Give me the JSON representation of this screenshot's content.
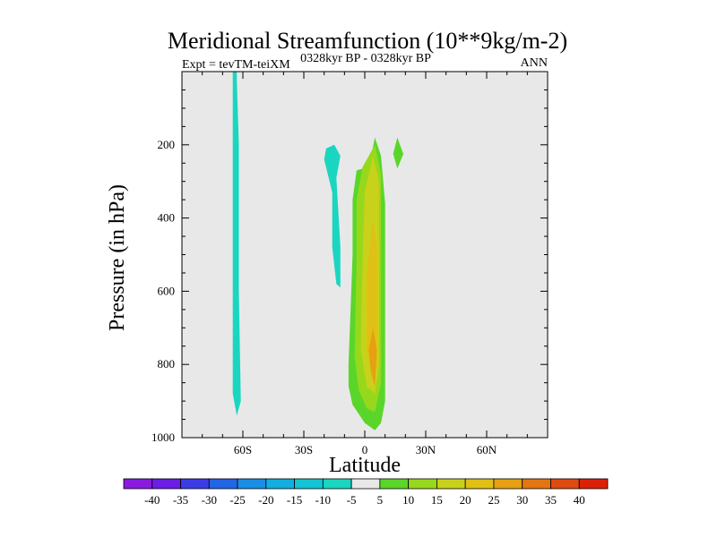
{
  "chart_data": {
    "type": "contour",
    "title": "Meridional Streamfunction (10**9kg/m-2)",
    "subtitle_left": "Expt = tevTM-teiXM",
    "subtitle_center": "0328kyr BP - 0328kyr BP",
    "subtitle_right": "ANN",
    "xlabel": "Latitude",
    "ylabel": "Pressure (in hPa)",
    "xlim": [
      -90,
      90
    ],
    "ylim": [
      1000,
      0
    ],
    "x_ticks": [
      {
        "value": -60,
        "label": "60S"
      },
      {
        "value": -30,
        "label": "30S"
      },
      {
        "value": 0,
        "label": "0"
      },
      {
        "value": 30,
        "label": "30N"
      },
      {
        "value": 60,
        "label": "60N"
      }
    ],
    "y_ticks": [
      {
        "value": 200,
        "label": "200"
      },
      {
        "value": 400,
        "label": "400"
      },
      {
        "value": 600,
        "label": "600"
      },
      {
        "value": 800,
        "label": "800"
      },
      {
        "value": 1000,
        "label": "1000"
      }
    ],
    "background_color": "#e8e8e8",
    "colorbar": {
      "labels": [
        "-40",
        "-35",
        "-30",
        "-25",
        "-20",
        "-15",
        "-10",
        "-5",
        "5",
        "10",
        "15",
        "20",
        "25",
        "30",
        "35",
        "40"
      ],
      "colors": [
        "#8b1ae0",
        "#6a1ee6",
        "#3c3ce6",
        "#2266e6",
        "#1a8ee6",
        "#12aee0",
        "#14c4d4",
        "#1ad6c0",
        "#e8e8e8",
        "#5ad62a",
        "#98d81c",
        "#c8d21a",
        "#e0c014",
        "#e6a012",
        "#e47612",
        "#e04a10",
        "#dc2008"
      ]
    },
    "regions": [
      {
        "level": "-10 to -5",
        "color": "#1ad6c0",
        "points": [
          [
            -65,
            0
          ],
          [
            -63,
            0
          ],
          [
            -63,
            20
          ],
          [
            -62,
            200
          ],
          [
            -62,
            600
          ],
          [
            -61,
            900
          ],
          [
            -63,
            940
          ],
          [
            -65,
            880
          ],
          [
            -65,
            200
          ]
        ]
      },
      {
        "level": "-10 to -5",
        "color": "#1ad6c0",
        "points": [
          [
            -19,
            210
          ],
          [
            -15,
            200
          ],
          [
            -12,
            230
          ],
          [
            -14,
            290
          ],
          [
            -12,
            480
          ],
          [
            -12,
            590
          ],
          [
            -14,
            580
          ],
          [
            -16,
            480
          ],
          [
            -16,
            330
          ],
          [
            -20,
            240
          ]
        ]
      },
      {
        "level": "5 to 10",
        "color": "#5ad62a",
        "points": [
          [
            2,
            260
          ],
          [
            5,
            180
          ],
          [
            8,
            230
          ],
          [
            10,
            360
          ],
          [
            10,
            900
          ],
          [
            8,
            960
          ],
          [
            5,
            980
          ],
          [
            0,
            960
          ],
          [
            -6,
            910
          ],
          [
            -8,
            860
          ],
          [
            -8,
            800
          ],
          [
            -6,
            500
          ],
          [
            -6,
            350
          ],
          [
            -4,
            270
          ]
        ]
      },
      {
        "level": "5 to 10",
        "color": "#5ad62a",
        "points": [
          [
            16,
            180
          ],
          [
            19,
            225
          ],
          [
            16,
            265
          ],
          [
            14,
            225
          ]
        ]
      },
      {
        "level": "10 to 15",
        "color": "#98d81c",
        "points": [
          [
            2,
            230
          ],
          [
            5,
            200
          ],
          [
            8,
            280
          ],
          [
            8,
            850
          ],
          [
            5,
            930
          ],
          [
            1,
            920
          ],
          [
            -3,
            870
          ],
          [
            -5,
            780
          ],
          [
            -4,
            500
          ],
          [
            -4,
            350
          ],
          [
            -1,
            260
          ]
        ]
      },
      {
        "level": "15 to 20",
        "color": "#c8d21a",
        "points": [
          [
            4,
            230
          ],
          [
            7,
            300
          ],
          [
            7,
            800
          ],
          [
            5,
            880
          ],
          [
            1,
            860
          ],
          [
            -2,
            760
          ],
          [
            -1,
            500
          ],
          [
            0,
            330
          ]
        ]
      },
      {
        "level": "20 to 25",
        "color": "#e0c014",
        "points": [
          [
            4,
            400
          ],
          [
            6,
            480
          ],
          [
            6,
            800
          ],
          [
            4,
            840
          ],
          [
            1,
            760
          ],
          [
            1,
            550
          ]
        ]
      },
      {
        "level": "25 to 30",
        "color": "#e6a012",
        "points": [
          [
            4,
            700
          ],
          [
            6,
            760
          ],
          [
            5,
            860
          ],
          [
            3,
            820
          ],
          [
            2,
            760
          ]
        ]
      }
    ]
  }
}
